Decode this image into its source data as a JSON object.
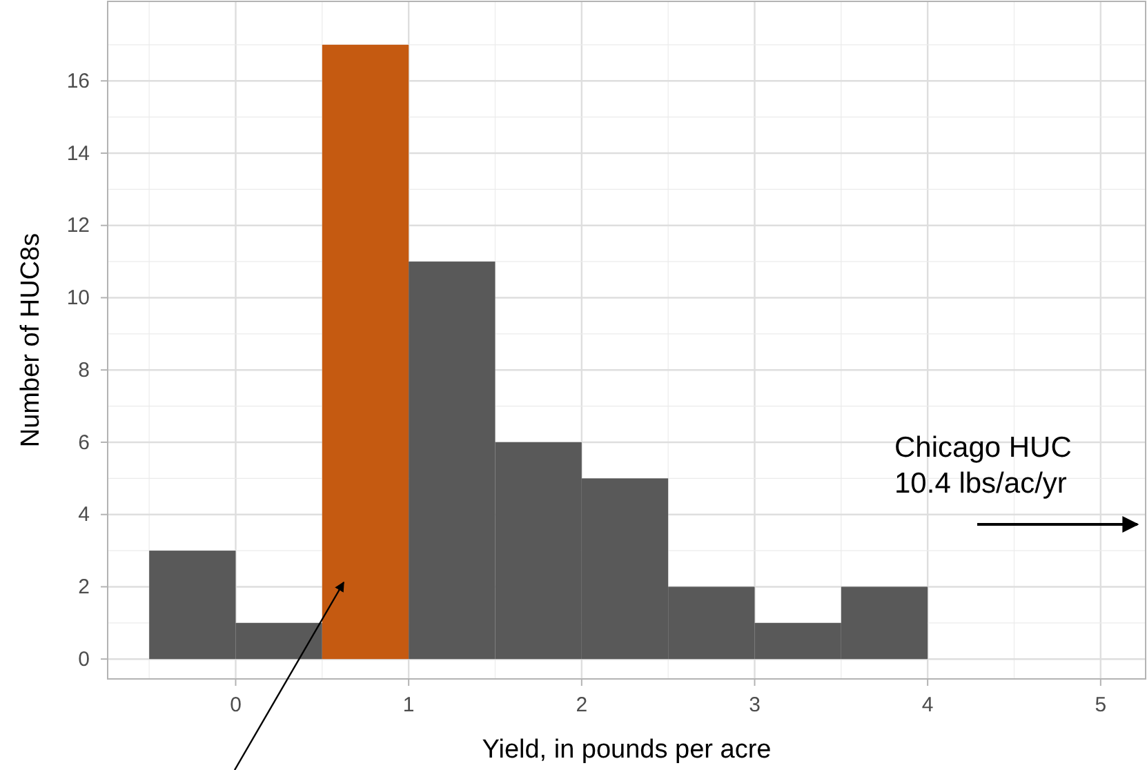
{
  "chart_data": {
    "type": "histogram",
    "xlabel": "Yield, in pounds per acre",
    "ylabel": "Number of HUC8s",
    "bins": [
      -0.5,
      0,
      0.5,
      1,
      1.5,
      2,
      2.5,
      3,
      3.5,
      4
    ],
    "values": [
      3,
      1,
      17,
      11,
      6,
      5,
      2,
      1,
      2
    ],
    "colors": [
      "#595959",
      "#595959",
      "#c55a11",
      "#595959",
      "#595959",
      "#595959",
      "#595959",
      "#595959",
      "#595959"
    ],
    "xlim": [
      -0.74,
      5.26
    ],
    "xticks": [
      0,
      1,
      2,
      3,
      4,
      5
    ],
    "ylim": [
      -0.55,
      18.2
    ],
    "yticks": [
      0,
      2,
      4,
      6,
      8,
      10,
      12,
      14,
      16
    ],
    "grid": true,
    "annotations": [
      "Chicago HUC\n10.4 lbs/ac/yr"
    ]
  }
}
